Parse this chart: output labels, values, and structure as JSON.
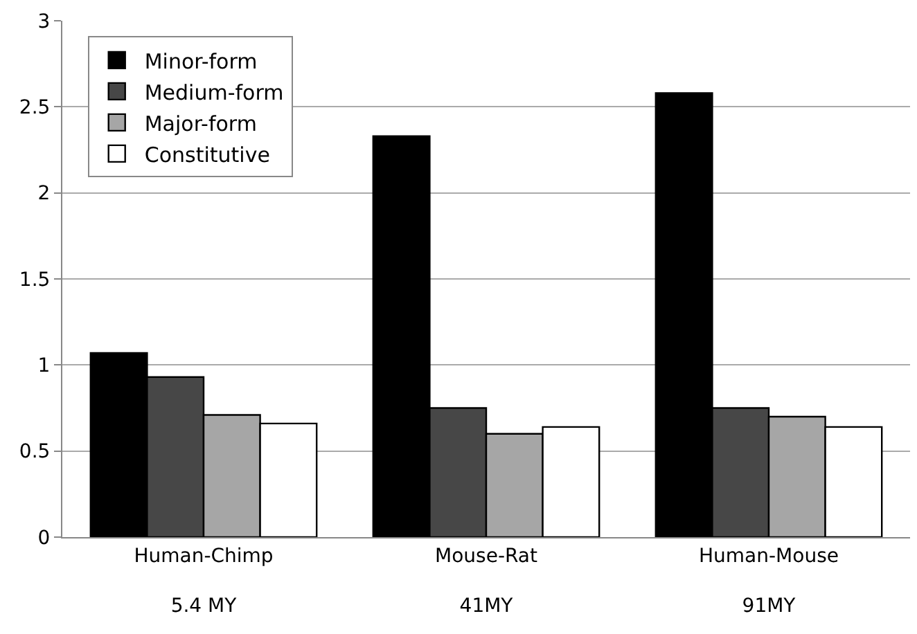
{
  "chart_data": {
    "type": "bar",
    "categories": [
      "Human-Chimp\n5.4 MY",
      "Mouse-Rat\n41MY",
      "Human-Mouse\n91MY"
    ],
    "series": [
      {
        "name": "Minor-form",
        "color": "#000000",
        "values": [
          1.07,
          2.33,
          2.58
        ]
      },
      {
        "name": "Medium-form",
        "color": "#474747",
        "values": [
          0.93,
          0.75,
          0.75
        ]
      },
      {
        "name": "Major-form",
        "color": "#a6a6a6",
        "values": [
          0.71,
          0.6,
          0.7
        ]
      },
      {
        "name": "Constitutive",
        "color": "#ffffff",
        "values": [
          0.66,
          0.64,
          0.64
        ]
      }
    ],
    "ylim": [
      0,
      3
    ],
    "yticks": [
      0,
      0.5,
      1,
      1.5,
      2,
      2.5,
      3
    ],
    "grid": "y",
    "legend": "top left"
  }
}
